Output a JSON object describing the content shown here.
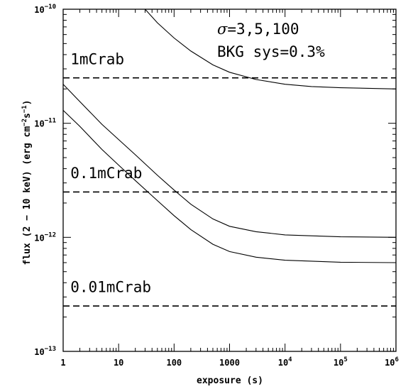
{
  "chart_data": {
    "type": "line",
    "xlabel": "exposure (s)",
    "ylabel": {
      "prefix": "flux (2 − 10 keV) (erg cm",
      "exp1": "−2",
      "mid": "s",
      "exp2": "−1",
      "suffix": ")"
    },
    "xscale": "log",
    "yscale": "log",
    "xlim": [
      1,
      1000000
    ],
    "ylim": [
      1e-13,
      1e-10
    ],
    "x_ticks": [
      {
        "value": 1,
        "label": "1",
        "sup": ""
      },
      {
        "value": 10,
        "label": "10",
        "sup": ""
      },
      {
        "value": 100,
        "label": "100",
        "sup": ""
      },
      {
        "value": 1000,
        "label": "1000",
        "sup": ""
      },
      {
        "value": 10000,
        "label": "10",
        "sup": "4"
      },
      {
        "value": 100000,
        "label": "10",
        "sup": "5"
      },
      {
        "value": 1000000,
        "label": "10",
        "sup": "6"
      }
    ],
    "y_ticks": [
      {
        "value": 1e-10,
        "label": "10",
        "sup": "−10"
      },
      {
        "value": 1e-11,
        "label": "10",
        "sup": "−11"
      },
      {
        "value": 1e-12,
        "label": "10",
        "sup": "−12"
      },
      {
        "value": 1e-13,
        "label": "10",
        "sup": "−13"
      }
    ],
    "series": [
      {
        "style": "solid",
        "x": [
          30,
          50,
          100,
          200,
          500,
          1000,
          3000,
          10000,
          30000,
          100000,
          1000000
        ],
        "y": [
          1e-10,
          7.6e-11,
          5.6e-11,
          4.3e-11,
          3.25e-11,
          2.8e-11,
          2.42e-11,
          2.2e-11,
          2.1e-11,
          2.05e-11,
          2e-11
        ]
      },
      {
        "style": "solid",
        "x": [
          1,
          2,
          5,
          10,
          20,
          50,
          100,
          200,
          500,
          1000,
          3000,
          10000,
          100000,
          1000000
        ],
        "y": [
          2.2e-11,
          1.55e-11,
          9.8e-12,
          7.2e-12,
          5.3e-12,
          3.5e-12,
          2.6e-12,
          1.95e-12,
          1.45e-12,
          1.25e-12,
          1.12e-12,
          1.05e-12,
          1.01e-12,
          1e-12
        ]
      },
      {
        "style": "solid",
        "x": [
          1,
          2,
          5,
          10,
          20,
          50,
          100,
          200,
          500,
          1000,
          3000,
          10000,
          100000,
          1000000
        ],
        "y": [
          1.3e-11,
          9.4e-12,
          5.9e-12,
          4.3e-12,
          3.15e-12,
          2.1e-12,
          1.55e-12,
          1.17e-12,
          8.7e-13,
          7.5e-13,
          6.7e-13,
          6.3e-13,
          6.05e-13,
          6e-13
        ]
      },
      {
        "style": "dashed",
        "x": [
          1,
          1000000
        ],
        "y": [
          2.5e-11,
          2.5e-11
        ]
      },
      {
        "style": "dashed",
        "x": [
          1,
          1000000
        ],
        "y": [
          2.5e-12,
          2.5e-12
        ]
      },
      {
        "style": "dashed",
        "x": [
          1,
          1000000
        ],
        "y": [
          2.5e-13,
          2.5e-13
        ]
      }
    ],
    "annotations": [
      {
        "text": "1mCrab",
        "x": 1.35,
        "y": 3.3e-11
      },
      {
        "text": "0.1mCrab",
        "x": 1.35,
        "y": 3.3e-12
      },
      {
        "text": "0.01mCrab",
        "x": 1.35,
        "y": 3.3e-13
      }
    ],
    "legend_text": {
      "sigma_symbol": "σ",
      "sigma_values": "=3,5,100",
      "bkg": "BKG sys=0.3%"
    },
    "legend_placement": "top-right",
    "grid": false
  }
}
